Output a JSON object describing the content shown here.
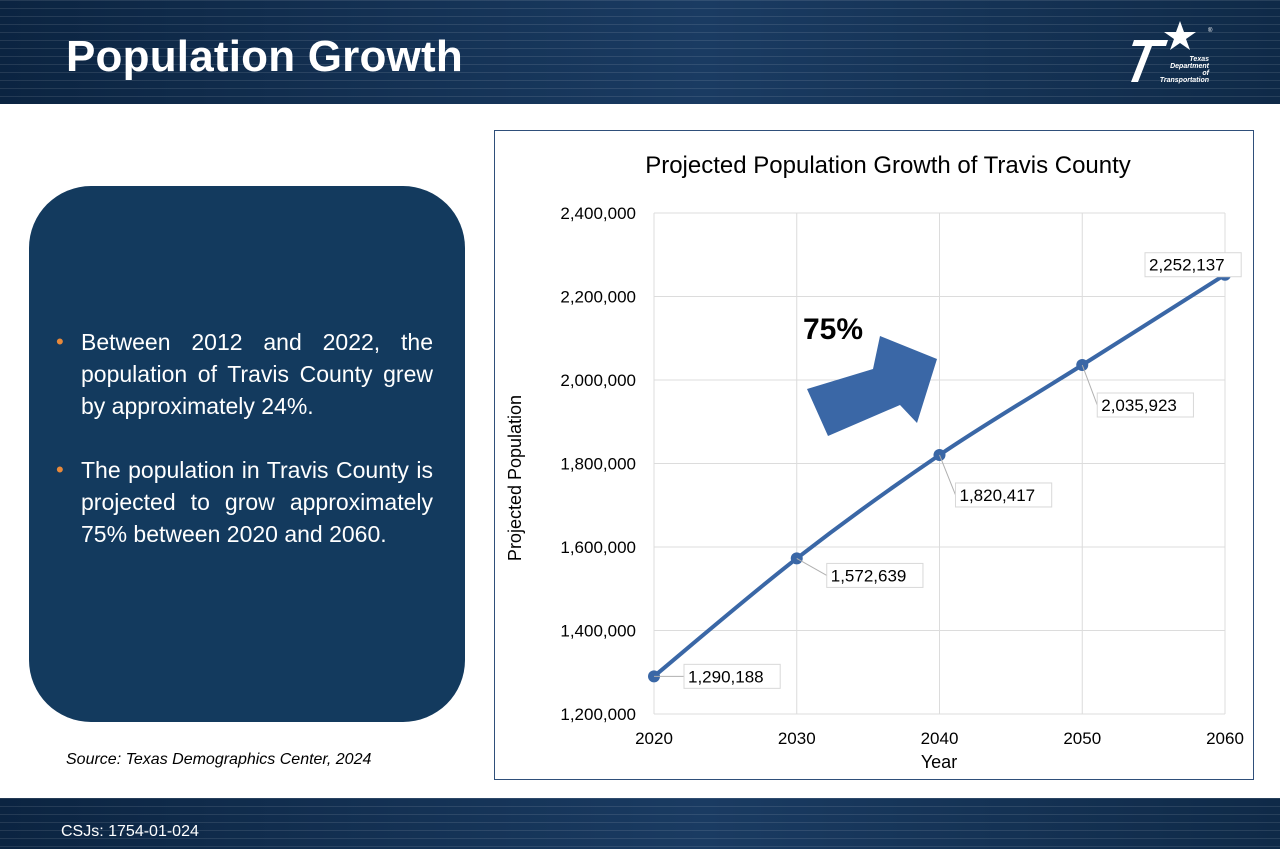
{
  "slide": {
    "title": "Population Growth",
    "logo_text": [
      "Texas",
      "Department",
      "of Transportation"
    ],
    "csj": "CSJs: 1754-01-024",
    "source": "Source: Texas Demographics Center, 2024",
    "bullets": [
      "Between 2012 and 2022, the population of Travis County grew by approximately 24%.",
      "The population in Travis County is projected to grow approximately 75% between 2020 and 2060."
    ],
    "colors": {
      "band": "#0f2a48",
      "box": "#133a5e",
      "bullet": "#e8893a",
      "series": "#3a67a6"
    }
  },
  "chart_data": {
    "type": "line",
    "title": "Projected Population Growth of Travis County",
    "xlabel": "Year",
    "ylabel": "Projected Population",
    "x": [
      "2020",
      "2030",
      "2040",
      "2050",
      "2060"
    ],
    "values": [
      1290188,
      1572639,
      1820417,
      2035923,
      2252137
    ],
    "value_labels": [
      "1,290,188",
      "1,572,639",
      "1,820,417",
      "2,035,923",
      "2,252,137"
    ],
    "ylim": [
      1200000,
      2400000
    ],
    "yticks": [
      1200000,
      1400000,
      1600000,
      1800000,
      2000000,
      2200000,
      2400000
    ],
    "ytick_labels": [
      "1,200,000",
      "1,400,000",
      "1,600,000",
      "1,800,000",
      "2,000,000",
      "2,200,000",
      "2,400,000"
    ],
    "grid": true,
    "annotation": "75%"
  }
}
